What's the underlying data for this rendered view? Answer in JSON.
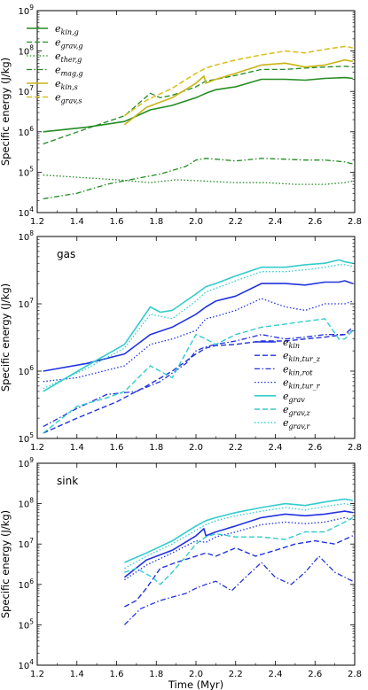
{
  "chart_data": [
    {
      "type": "line",
      "panel_label": "",
      "ylabel": "Specific energy (J/kg)",
      "xlabel": "",
      "xlim": [
        1.2,
        2.8
      ],
      "ylim": [
        10000,
        1000000000
      ],
      "yscale": "log",
      "xticks": [
        "1.2",
        "1.4",
        "1.6",
        "1.8",
        "2.0",
        "2.2",
        "2.4",
        "2.6",
        "2.8"
      ],
      "yticks": [
        "10^4",
        "10^5",
        "10^6",
        "10^7",
        "10^8",
        "10^9"
      ],
      "legend_position": "top-left",
      "series": [
        {
          "name": "e_kin,g",
          "color": "#228B22",
          "dash": "solid",
          "width": 1.6,
          "x": [
            1.23,
            1.45,
            1.64,
            1.77,
            1.88,
            2.0,
            2.05,
            2.1,
            2.2,
            2.33,
            2.45,
            2.55,
            2.65,
            2.75,
            2.79
          ],
          "y": [
            1000000.0,
            1300000.0,
            1800000.0,
            3500000.0,
            4500000.0,
            7000000.0,
            9000000.0,
            11000000.0,
            13000000.0,
            20000000.0,
            20000000.0,
            19000000.0,
            21000000.0,
            22000000.0,
            21000000.0
          ]
        },
        {
          "name": "e_grav,g",
          "color": "#228B22",
          "dash": "dashed",
          "width": 1.3,
          "x": [
            1.23,
            1.45,
            1.64,
            1.77,
            1.82,
            1.88,
            2.0,
            2.05,
            2.1,
            2.2,
            2.33,
            2.45,
            2.55,
            2.65,
            2.75,
            2.79
          ],
          "y": [
            500000.0,
            1200000.0,
            2500000.0,
            9000000.0,
            7000000.0,
            8000000.0,
            13000000.0,
            18000000.0,
            20000000.0,
            25000000.0,
            35000000.0,
            35000000.0,
            38000000.0,
            40000000.0,
            42000000.0,
            40000000.0
          ]
        },
        {
          "name": "e_ther,g",
          "color": "#228B22",
          "dash": "dotted",
          "width": 1.3,
          "x": [
            1.23,
            1.4,
            1.6,
            1.77,
            1.9,
            2.05,
            2.2,
            2.35,
            2.5,
            2.65,
            2.75,
            2.79
          ],
          "y": [
            85000.0,
            75000.0,
            65000.0,
            55000.0,
            65000.0,
            60000.0,
            55000.0,
            55000.0,
            50000.0,
            50000.0,
            55000.0,
            60000.0
          ]
        },
        {
          "name": "e_mag,g",
          "color": "#228B22",
          "dash": "dashdot",
          "width": 1.3,
          "x": [
            1.23,
            1.4,
            1.55,
            1.7,
            1.82,
            1.95,
            2.0,
            2.05,
            2.1,
            2.2,
            2.33,
            2.45,
            2.55,
            2.65,
            2.75,
            2.79
          ],
          "y": [
            22000.0,
            30000.0,
            50000.0,
            70000.0,
            90000.0,
            140000.0,
            200000.0,
            220000.0,
            210000.0,
            190000.0,
            220000.0,
            210000.0,
            200000.0,
            200000.0,
            180000.0,
            160000.0
          ]
        },
        {
          "name": "e_kin,s",
          "color": "#C8B414",
          "dash": "solid",
          "width": 1.6,
          "x": [
            1.64,
            1.75,
            1.88,
            2.0,
            2.04,
            2.05,
            2.1,
            2.2,
            2.33,
            2.45,
            2.55,
            2.65,
            2.75,
            2.79
          ],
          "y": [
            1500000.0,
            4000000.0,
            7000000.0,
            16000000.0,
            24000000.0,
            16000000.0,
            20000000.0,
            28000000.0,
            45000000.0,
            50000000.0,
            40000000.0,
            45000000.0,
            60000000.0,
            55000000.0
          ]
        },
        {
          "name": "e_grav,s",
          "color": "#DDC020",
          "dash": "dashed",
          "width": 1.6,
          "x": [
            1.64,
            1.75,
            1.88,
            2.0,
            2.05,
            2.1,
            2.2,
            2.33,
            2.45,
            2.55,
            2.65,
            2.75,
            2.79
          ],
          "y": [
            2500000.0,
            6000000.0,
            12000000.0,
            28000000.0,
            38000000.0,
            45000000.0,
            60000000.0,
            80000000.0,
            100000000.0,
            90000000.0,
            110000000.0,
            130000000.0,
            120000000.0
          ]
        }
      ]
    },
    {
      "type": "line",
      "panel_label": "gas",
      "ylabel": "Specific energy (J/kg)",
      "xlabel": "",
      "xlim": [
        1.2,
        2.8
      ],
      "ylim": [
        100000,
        100000000
      ],
      "yscale": "log",
      "xticks": [
        "1.2",
        "1.4",
        "1.6",
        "1.8",
        "2.0",
        "2.2",
        "2.4",
        "2.6",
        "2.8"
      ],
      "yticks": [
        "10^5",
        "10^6",
        "10^7",
        "10^8"
      ],
      "legend_position": "lower-right",
      "series": [
        {
          "name": "e_kin",
          "color": "#2233DD",
          "dash": "solid",
          "width": 1.6,
          "x": [
            1.23,
            1.45,
            1.64,
            1.77,
            1.88,
            2.0,
            2.05,
            2.1,
            2.2,
            2.33,
            2.45,
            2.55,
            2.65,
            2.72,
            2.75,
            2.79
          ],
          "y": [
            1000000.0,
            1300000.0,
            1800000.0,
            3500000.0,
            4500000.0,
            7000000.0,
            9000000.0,
            11000000.0,
            13000000.0,
            20000000.0,
            20000000.0,
            19000000.0,
            21000000.0,
            21000000.0,
            22000000.0,
            20000000.0
          ]
        },
        {
          "name": "e_kin,tur_z",
          "color": "#2233DD",
          "dash": "dashed",
          "width": 1.4,
          "x": [
            1.23,
            1.4,
            1.6,
            1.75,
            1.88,
            2.0,
            2.05,
            2.1,
            2.2,
            2.33,
            2.45,
            2.55,
            2.65,
            2.75,
            2.79
          ],
          "y": [
            120000.0,
            200000.0,
            350000.0,
            600000.0,
            1000000.0,
            1800000.0,
            2200000.0,
            2400000.0,
            2500000.0,
            2800000.0,
            2800000.0,
            3000000.0,
            3200000.0,
            3500000.0,
            4500000.0
          ]
        },
        {
          "name": "e_kin,rot",
          "color": "#2233DD",
          "dash": "dashdot",
          "width": 1.3,
          "x": [
            1.23,
            1.4,
            1.55,
            1.7,
            1.82,
            1.95,
            2.0,
            2.05,
            2.1,
            2.2,
            2.33,
            2.45,
            2.55,
            2.65,
            2.75,
            2.79
          ],
          "y": [
            150000.0,
            280000.0,
            450000.0,
            500000.0,
            700000.0,
            1300000.0,
            2000000.0,
            2300000.0,
            2500000.0,
            2800000.0,
            3500000.0,
            3000000.0,
            3200000.0,
            3500000.0,
            3500000.0,
            4000000.0
          ]
        },
        {
          "name": "e_kin,tur_r",
          "color": "#2233DD",
          "dash": "dotted",
          "width": 1.3,
          "x": [
            1.23,
            1.4,
            1.64,
            1.77,
            1.88,
            2.0,
            2.05,
            2.1,
            2.2,
            2.33,
            2.45,
            2.55,
            2.65,
            2.72,
            2.75,
            2.79
          ],
          "y": [
            700000.0,
            800000.0,
            1200000.0,
            2500000.0,
            3000000.0,
            4000000.0,
            6000000.0,
            6500000.0,
            8000000.0,
            12000000.0,
            9000000.0,
            8000000.0,
            10000000.0,
            10000000.0,
            10000000.0,
            11000000.0
          ]
        },
        {
          "name": "e_grav",
          "color": "#33CCCC",
          "dash": "solid",
          "width": 1.6,
          "x": [
            1.23,
            1.45,
            1.64,
            1.77,
            1.82,
            1.88,
            2.0,
            2.05,
            2.1,
            2.2,
            2.33,
            2.45,
            2.55,
            2.65,
            2.72,
            2.75,
            2.79
          ],
          "y": [
            500000.0,
            1200000.0,
            2500000.0,
            9000000.0,
            7500000.0,
            8000000.0,
            14000000.0,
            18000000.0,
            20000000.0,
            26000000.0,
            35000000.0,
            35000000.0,
            38000000.0,
            40000000.0,
            45000000.0,
            42000000.0,
            40000000.0
          ]
        },
        {
          "name": "e_grav,z",
          "color": "#33CCCC",
          "dash": "dashed",
          "width": 1.4,
          "x": [
            1.23,
            1.4,
            1.55,
            1.64,
            1.77,
            1.88,
            2.0,
            2.05,
            2.1,
            2.2,
            2.33,
            2.45,
            2.55,
            2.65,
            2.72,
            2.75,
            2.79
          ],
          "y": [
            120000.0,
            300000.0,
            400000.0,
            500000.0,
            1200000.0,
            800000.0,
            3500000.0,
            3000000.0,
            2500000.0,
            3500000.0,
            4500000.0,
            5000000.0,
            5500000.0,
            6000000.0,
            3000000.0,
            3000000.0,
            4000000.0
          ]
        },
        {
          "name": "e_grav,r",
          "color": "#33CCCC",
          "dash": "dotted",
          "width": 1.3,
          "x": [
            1.23,
            1.45,
            1.64,
            1.77,
            1.88,
            2.0,
            2.05,
            2.1,
            2.2,
            2.33,
            2.45,
            2.55,
            2.65,
            2.72,
            2.75,
            2.79
          ],
          "y": [
            550000.0,
            1100000.0,
            2200000.0,
            7000000.0,
            6000000.0,
            11000000.0,
            15000000.0,
            17000000.0,
            22000000.0,
            30000000.0,
            30000000.0,
            32000000.0,
            35000000.0,
            38000000.0,
            38000000.0,
            36000000.0
          ]
        }
      ]
    },
    {
      "type": "line",
      "panel_label": "sink",
      "ylabel": "Specific energy (J/kg)",
      "xlabel": "Time (Myr)",
      "xlim": [
        1.2,
        2.8
      ],
      "ylim": [
        10000,
        1000000000
      ],
      "yscale": "log",
      "xticks": [
        "1.2",
        "1.4",
        "1.6",
        "1.8",
        "2.0",
        "2.2",
        "2.4",
        "2.6",
        "2.8"
      ],
      "yticks": [
        "10^4",
        "10^5",
        "10^6",
        "10^7",
        "10^8",
        "10^9"
      ],
      "series": [
        {
          "name": "e_kin",
          "color": "#2233DD",
          "dash": "solid",
          "width": 1.6,
          "x": [
            1.64,
            1.75,
            1.88,
            2.0,
            2.04,
            2.05,
            2.1,
            2.2,
            2.33,
            2.45,
            2.55,
            2.65,
            2.75,
            2.79
          ],
          "y": [
            1500000.0,
            4000000.0,
            7000000.0,
            16000000.0,
            24000000.0,
            16000000.0,
            20000000.0,
            28000000.0,
            45000000.0,
            55000000.0,
            50000000.0,
            55000000.0,
            65000000.0,
            60000000.0
          ]
        },
        {
          "name": "e_kin,tur_z",
          "color": "#2233DD",
          "dash": "dashed",
          "width": 1.4,
          "x": [
            1.64,
            1.7,
            1.75,
            1.82,
            1.9,
            2.0,
            2.05,
            2.1,
            2.2,
            2.3,
            2.4,
            2.5,
            2.6,
            2.7,
            2.75,
            2.79
          ],
          "y": [
            280000.0,
            400000.0,
            800000.0,
            2500000.0,
            3500000.0,
            5000000.0,
            6000000.0,
            5000000.0,
            8000000.0,
            5000000.0,
            7000000.0,
            10000000.0,
            12000000.0,
            10000000.0,
            13000000.0,
            16000000.0
          ]
        },
        {
          "name": "e_kin,rot",
          "color": "#2233DD",
          "dash": "dashdot",
          "width": 1.3,
          "x": [
            1.64,
            1.72,
            1.82,
            1.95,
            2.0,
            2.05,
            2.1,
            2.18,
            2.25,
            2.33,
            2.4,
            2.48,
            2.55,
            2.62,
            2.7,
            2.79
          ],
          "y": [
            100000.0,
            250000.0,
            400000.0,
            600000.0,
            800000.0,
            1000000.0,
            1200000.0,
            700000.0,
            1500000.0,
            3500000.0,
            1500000.0,
            1000000.0,
            2000000.0,
            5000000.0,
            2000000.0,
            1200000.0
          ]
        },
        {
          "name": "e_kin,tur_r",
          "color": "#2233DD",
          "dash": "dotted",
          "width": 1.3,
          "x": [
            1.64,
            1.75,
            1.88,
            2.0,
            2.05,
            2.1,
            2.2,
            2.33,
            2.45,
            2.55,
            2.65,
            2.75,
            2.79
          ],
          "y": [
            1300000.0,
            3000000.0,
            6000000.0,
            12000000.0,
            11000000.0,
            15000000.0,
            20000000.0,
            30000000.0,
            35000000.0,
            32000000.0,
            35000000.0,
            45000000.0,
            40000000.0
          ]
        },
        {
          "name": "e_grav",
          "color": "#33CCCC",
          "dash": "solid",
          "width": 1.6,
          "x": [
            1.64,
            1.75,
            1.88,
            2.0,
            2.05,
            2.1,
            2.2,
            2.33,
            2.45,
            2.55,
            2.65,
            2.75,
            2.79
          ],
          "y": [
            3500000.0,
            6000000.0,
            12000000.0,
            28000000.0,
            38000000.0,
            45000000.0,
            60000000.0,
            80000000.0,
            100000000.0,
            90000000.0,
            110000000.0,
            130000000.0,
            120000000.0
          ]
        },
        {
          "name": "e_grav,z",
          "color": "#33CCCC",
          "dash": "dashed",
          "width": 1.4,
          "x": [
            1.64,
            1.7,
            1.78,
            1.82,
            1.88,
            1.95,
            2.0,
            2.05,
            2.1,
            2.2,
            2.33,
            2.45,
            2.55,
            2.65,
            2.75,
            2.79
          ],
          "y": [
            2000000.0,
            2500000.0,
            1500000.0,
            1000000.0,
            2000000.0,
            5000000.0,
            10000000.0,
            15000000.0,
            18000000.0,
            15000000.0,
            15000000.0,
            13000000.0,
            20000000.0,
            20000000.0,
            35000000.0,
            45000000.0
          ]
        },
        {
          "name": "e_grav,r",
          "color": "#33CCCC",
          "dash": "dotted",
          "width": 1.3,
          "x": [
            1.64,
            1.75,
            1.88,
            2.0,
            2.05,
            2.1,
            2.2,
            2.33,
            2.45,
            2.55,
            2.65,
            2.75,
            2.79
          ],
          "y": [
            2500000.0,
            5000000.0,
            10000000.0,
            22000000.0,
            30000000.0,
            38000000.0,
            50000000.0,
            65000000.0,
            80000000.0,
            70000000.0,
            85000000.0,
            100000000.0,
            90000000.0
          ]
        }
      ]
    }
  ],
  "legends": [
    {
      "entries": [
        {
          "base": "e",
          "sub": "kin,g",
          "color": "#228B22",
          "dash": "solid",
          "width": 1.6
        },
        {
          "base": "e",
          "sub": "grav,g",
          "color": "#228B22",
          "dash": "dashed",
          "width": 1.3
        },
        {
          "base": "e",
          "sub": "ther,g",
          "color": "#228B22",
          "dash": "dotted",
          "width": 1.3
        },
        {
          "base": "e",
          "sub": "mag,g",
          "color": "#228B22",
          "dash": "dashdot",
          "width": 1.3
        },
        {
          "base": "e",
          "sub": "kin,s",
          "color": "#C8B414",
          "dash": "solid",
          "width": 1.6
        },
        {
          "base": "e",
          "sub": "grav,s",
          "color": "#DDC020",
          "dash": "dashed",
          "width": 1.6
        }
      ]
    },
    {
      "entries": [
        {
          "base": "e",
          "sub": "kin",
          "color": "#2233DD",
          "dash": "solid",
          "width": 1.6
        },
        {
          "base": "e",
          "sub": "kin,tur_z",
          "color": "#2233DD",
          "dash": "dashed",
          "width": 1.4
        },
        {
          "base": "e",
          "sub": "kin,rot",
          "color": "#2233DD",
          "dash": "dashdot",
          "width": 1.3
        },
        {
          "base": "e",
          "sub": "kin,tur_r",
          "color": "#2233DD",
          "dash": "dotted",
          "width": 1.3
        },
        {
          "base": "e",
          "sub": "grav",
          "color": "#33CCCC",
          "dash": "solid",
          "width": 1.6
        },
        {
          "base": "e",
          "sub": "grav,z",
          "color": "#33CCCC",
          "dash": "dashed",
          "width": 1.4
        },
        {
          "base": "e",
          "sub": "grav,r",
          "color": "#33CCCC",
          "dash": "dotted",
          "width": 1.3
        }
      ]
    }
  ]
}
